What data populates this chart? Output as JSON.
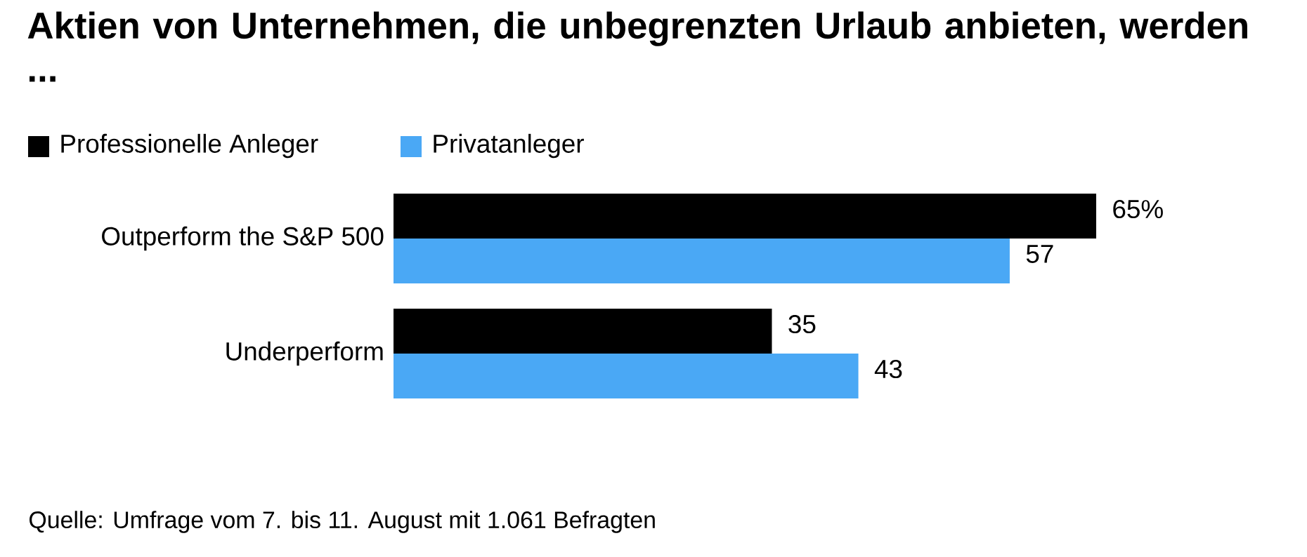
{
  "chart_data": {
    "type": "bar",
    "orientation": "horizontal",
    "title": "Aktien von Unternehmen, die unbegrenzten Urlaub anbieten, werden ...",
    "categories": [
      "Outperform the S&P 500",
      "Underperform"
    ],
    "series": [
      {
        "name": "Professionelle Anleger",
        "color": "#000000",
        "values": [
          65,
          35
        ],
        "value_labels": [
          "65%",
          "35"
        ]
      },
      {
        "name": "Privatanleger",
        "color": "#4aa8f5",
        "values": [
          57,
          43
        ],
        "value_labels": [
          "57",
          "43"
        ]
      }
    ],
    "legend": "top left",
    "annotations": [
      "Quelle: Umfrage vom 7. bis 11. August mit 1.061 Befragten"
    ]
  }
}
